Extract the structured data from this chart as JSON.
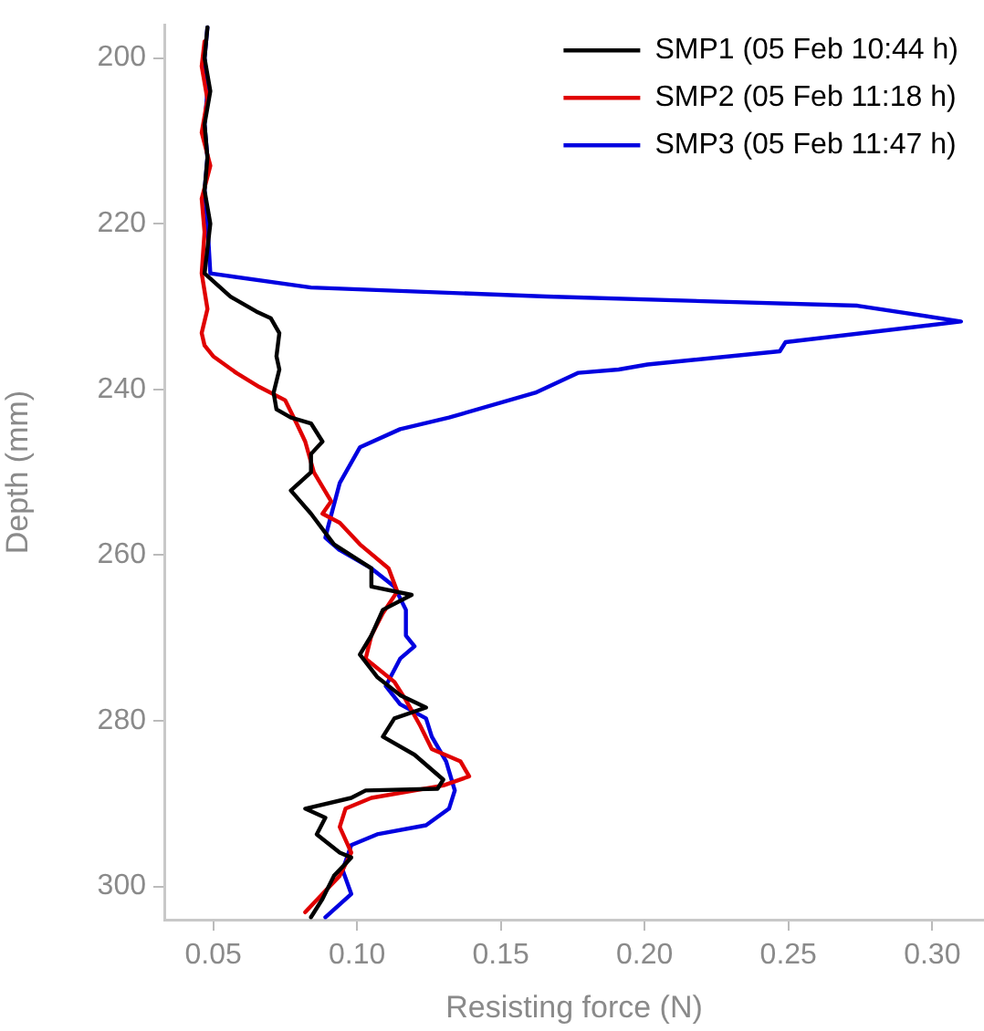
{
  "chart_data": {
    "type": "line",
    "xlabel": "Resisting force (N)",
    "ylabel": "Depth (mm)",
    "xlim": [
      0.033,
      0.318
    ],
    "xticks": [
      {
        "value": 0.05,
        "label": "0.05"
      },
      {
        "value": 0.1,
        "label": "0.10"
      },
      {
        "value": 0.15,
        "label": "0.15"
      },
      {
        "value": 0.2,
        "label": "0.20"
      },
      {
        "value": 0.25,
        "label": "0.25"
      },
      {
        "value": 0.3,
        "label": "0.30"
      }
    ],
    "ylim": [
      304,
      196
    ],
    "yticks": [
      200,
      220,
      240,
      260,
      280,
      300
    ],
    "grid": false,
    "legend": "top right",
    "marker": "none",
    "line_style": "solid",
    "series": [
      {
        "name": "SMP1 (05 Feb 10:44 h)",
        "color": "#000000",
        "x": [
          0.048,
          0.047,
          0.049,
          0.047,
          0.048,
          0.047,
          0.049,
          0.047,
          0.056,
          0.065,
          0.07,
          0.073,
          0.072,
          0.073,
          0.071,
          0.072,
          0.077,
          0.084,
          0.088,
          0.084,
          0.084,
          0.077,
          0.084,
          0.092,
          0.105,
          0.105,
          0.119,
          0.109,
          0.105,
          0.101,
          0.107,
          0.115,
          0.124,
          0.113,
          0.109,
          0.12,
          0.13,
          0.128,
          0.103,
          0.098,
          0.082,
          0.089,
          0.086,
          0.094,
          0.098,
          0.092,
          0.088,
          0.084
        ],
        "values": [
          196.3,
          200,
          204,
          208,
          212,
          216,
          220,
          226,
          228.8,
          230.6,
          231.4,
          233.2,
          236,
          237.6,
          240.4,
          242.4,
          243.4,
          244.1,
          246.3,
          247.8,
          250,
          252.2,
          255,
          258.7,
          261.6,
          263.8,
          264.8,
          266.6,
          269.7,
          272,
          274.7,
          276.9,
          278.4,
          279.7,
          281.9,
          284.1,
          287.1,
          288.2,
          288.4,
          289.3,
          290.6,
          291.7,
          293.7,
          295.9,
          296.5,
          298.7,
          301.5,
          303.7
        ]
      },
      {
        "name": "SMP2 (05 Feb 11:18 h)",
        "color": "#e00000",
        "x": [
          0.047,
          0.046,
          0.048,
          0.046,
          0.049,
          0.046,
          0.047,
          0.046,
          0.048,
          0.046,
          0.047,
          0.05,
          0.058,
          0.066,
          0.075,
          0.079,
          0.082,
          0.085,
          0.091,
          0.088,
          0.094,
          0.101,
          0.111,
          0.114,
          0.109,
          0.105,
          0.103,
          0.113,
          0.117,
          0.122,
          0.126,
          0.136,
          0.139,
          0.13,
          0.105,
          0.096,
          0.094,
          0.098,
          0.094,
          0.088,
          0.082
        ],
        "values": [
          198,
          201,
          205,
          209,
          213,
          217,
          221,
          226,
          230.3,
          233.2,
          234.7,
          236,
          238,
          239.7,
          241.3,
          244.1,
          246.3,
          250,
          253.5,
          255,
          256.1,
          258.7,
          261.6,
          264.4,
          267,
          269.7,
          272.5,
          275.3,
          277.5,
          280.6,
          283.4,
          284.9,
          286.7,
          287.8,
          289.3,
          290.6,
          292.8,
          295.9,
          298.7,
          300.9,
          303.1
        ]
      },
      {
        "name": "SMP3 (05 Feb 11:47 h)",
        "color": "#0000e0",
        "x": [
          0.048,
          0.047,
          0.048,
          0.047,
          0.048,
          0.047,
          0.048,
          0.049,
          0.084,
          0.166,
          0.274,
          0.31,
          0.249,
          0.247,
          0.201,
          0.191,
          0.177,
          0.162,
          0.132,
          0.115,
          0.101,
          0.094,
          0.09,
          0.089,
          0.094,
          0.105,
          0.113,
          0.117,
          0.117,
          0.12,
          0.115,
          0.11,
          0.115,
          0.124,
          0.126,
          0.131,
          0.134,
          0.132,
          0.124,
          0.107,
          0.098,
          0.095,
          0.098,
          0.089
        ],
        "values": [
          196.3,
          200,
          204,
          208,
          212,
          216,
          220,
          226,
          227.7,
          228.8,
          229.9,
          231.8,
          234.3,
          235.4,
          237,
          237.6,
          238,
          240.4,
          243.4,
          244.8,
          247,
          251.3,
          256.5,
          257.9,
          259.4,
          261.6,
          263.8,
          266.6,
          269.7,
          271,
          272.5,
          275.8,
          278,
          279.7,
          281.9,
          284.9,
          288.4,
          290.6,
          292.6,
          293.7,
          295,
          298,
          300.9,
          303.7
        ]
      }
    ]
  }
}
